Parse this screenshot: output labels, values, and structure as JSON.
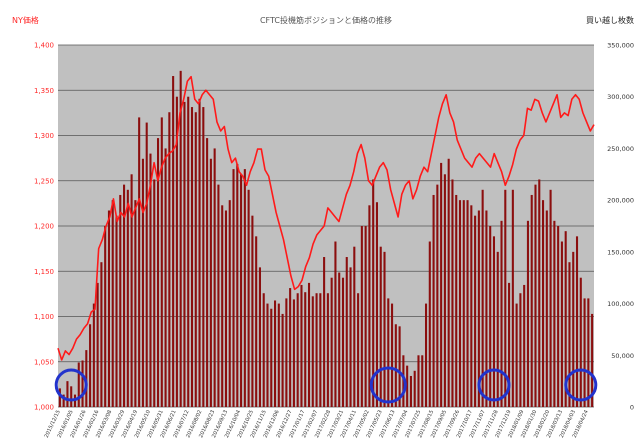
{
  "chart_data": {
    "type": "bar+line",
    "title": "CFTC投機筋ポジションと価格の推移",
    "ylabel_left": "NY価格",
    "ylabel_right": "買い越し枚数",
    "ylim_left": [
      1000,
      1400
    ],
    "ylim_right": [
      0,
      350000
    ],
    "left_ticks": [
      "1,000",
      "1,050",
      "1,100",
      "1,150",
      "1,200",
      "1,250",
      "1,300",
      "1,350",
      "1,400"
    ],
    "right_ticks": [
      "0",
      "50,000",
      "100,000",
      "150,000",
      "200,000",
      "250,000",
      "300,000",
      "350,000"
    ],
    "x_tick_labels": [
      "2015/12/15",
      "2016/01/05",
      "2016/01/26",
      "2016/02/16",
      "2016/03/08",
      "2016/03/29",
      "2016/04/19",
      "2016/05/10",
      "2016/05/31",
      "2016/06/21",
      "2016/07/12",
      "2016/08/02",
      "2016/08/23",
      "2016/09/13",
      "2016/10/04",
      "2016/10/25",
      "2016/11/15",
      "2016/12/06",
      "2016/12/27",
      "2017/01/17",
      "2017/02/07",
      "2017/02/28",
      "2017/03/21",
      "2017/04/11",
      "2017/05/02",
      "2017/05/23",
      "2017/06/13",
      "2017/07/04",
      "2017/07/25",
      "2017/08/15",
      "2017/09/05",
      "2017/09/26",
      "2017/10/17",
      "2017/11/07",
      "2017/11/28",
      "2017/12/19",
      "2018/01/09",
      "2018/01/30",
      "2018/02/20",
      "2018/03/13",
      "2018/04/03",
      "2018/04/24"
    ],
    "grid": true,
    "series": [
      {
        "type": "bar",
        "axis": "right",
        "color": "#8b0e0e",
        "values": [
          18000,
          12000,
          25000,
          20000,
          12000,
          43000,
          45000,
          55000,
          80000,
          100000,
          120000,
          140000,
          175000,
          190000,
          200000,
          185000,
          205000,
          215000,
          210000,
          225000,
          200000,
          280000,
          240000,
          275000,
          245000,
          220000,
          260000,
          280000,
          250000,
          285000,
          320000,
          300000,
          325000,
          295000,
          300000,
          290000,
          285000,
          298000,
          290000,
          260000,
          240000,
          250000,
          215000,
          195000,
          190000,
          200000,
          230000,
          235000,
          225000,
          230000,
          210000,
          185000,
          165000,
          135000,
          110000,
          100000,
          95000,
          103000,
          100000,
          90000,
          105000,
          115000,
          104000,
          110000,
          118000,
          111000,
          120000,
          107000,
          110000,
          110000,
          145000,
          110000,
          125000,
          160000,
          130000,
          125000,
          145000,
          135000,
          155000,
          110000,
          175000,
          175000,
          195000,
          220000,
          198000,
          155000,
          150000,
          105000,
          100000,
          80000,
          78000,
          50000,
          40000,
          30000,
          35000,
          50000,
          50000,
          100000,
          160000,
          205000,
          215000,
          236000,
          225000,
          240000,
          220000,
          205000,
          200000,
          200000,
          200000,
          195000,
          185000,
          190000,
          210000,
          190000,
          175000,
          165000,
          150000,
          180000,
          210000,
          120000,
          210000,
          100000,
          110000,
          118000,
          180000,
          205000,
          215000,
          220000,
          200000,
          190000,
          210000,
          180000,
          175000,
          160000,
          170000,
          140000,
          150000,
          165000,
          125000,
          105000,
          105000,
          90000
        ]
      },
      {
        "type": "line",
        "axis": "left",
        "color": "#ff1a1a",
        "values": [
          1065,
          1052,
          1062,
          1058,
          1065,
          1075,
          1080,
          1087,
          1092,
          1105,
          1108,
          1175,
          1185,
          1200,
          1210,
          1230,
          1205,
          1215,
          1210,
          1225,
          1210,
          1220,
          1230,
          1215,
          1225,
          1245,
          1270,
          1250,
          1265,
          1275,
          1280,
          1283,
          1290,
          1325,
          1340,
          1360,
          1365,
          1340,
          1335,
          1345,
          1350,
          1345,
          1340,
          1315,
          1305,
          1310,
          1285,
          1270,
          1275,
          1260,
          1255,
          1245,
          1260,
          1270,
          1285,
          1285,
          1262,
          1255,
          1235,
          1215,
          1200,
          1185,
          1165,
          1145,
          1130,
          1133,
          1140,
          1155,
          1165,
          1180,
          1190,
          1195,
          1200,
          1220,
          1215,
          1210,
          1205,
          1220,
          1235,
          1245,
          1260,
          1280,
          1290,
          1275,
          1250,
          1245,
          1255,
          1265,
          1270,
          1262,
          1240,
          1225,
          1210,
          1235,
          1245,
          1250,
          1230,
          1240,
          1255,
          1265,
          1260,
          1280,
          1300,
          1320,
          1335,
          1345,
          1325,
          1315,
          1295,
          1285,
          1275,
          1270,
          1265,
          1275,
          1280,
          1275,
          1270,
          1265,
          1280,
          1270,
          1260,
          1245,
          1255,
          1268,
          1285,
          1295,
          1300,
          1330,
          1328,
          1340,
          1338,
          1325,
          1315,
          1325,
          1335,
          1345,
          1320,
          1325,
          1322,
          1340,
          1345,
          1340,
          1325,
          1315,
          1305,
          1312
        ]
      }
    ]
  },
  "colors": {
    "plot_background": "#c0c0c0",
    "grid": "#555555",
    "highlight_circle": "#2233cc"
  }
}
